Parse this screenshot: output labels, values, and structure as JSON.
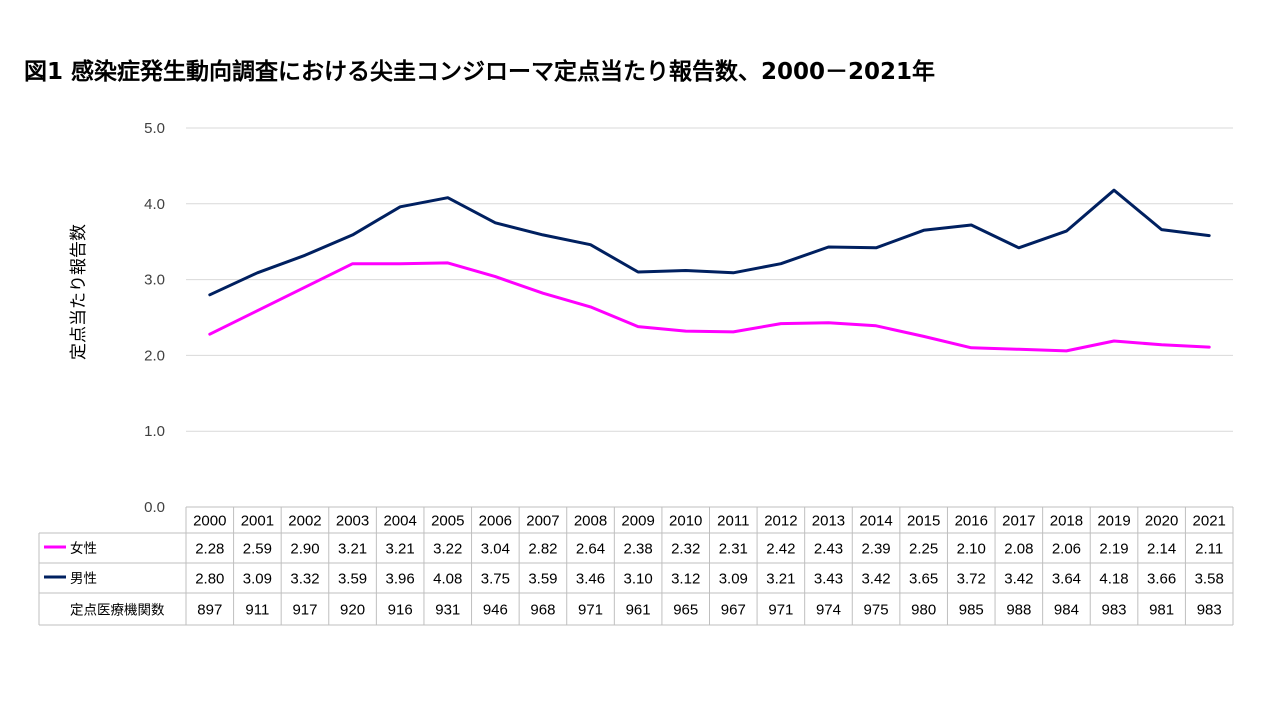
{
  "title": "図1 感染症発生動向調査における尖圭コンジローマ定点当たり報告数、2000－2021年",
  "chart_data": {
    "type": "line",
    "title": "図1 感染症発生動向調査における尖圭コンジローマ定点当たり報告数、2000－2021年",
    "ylabel": "定点当たり報告数",
    "xlabel": "",
    "ylim": [
      0,
      5
    ],
    "yticks": [
      "0.0",
      "1.0",
      "2.0",
      "3.0",
      "4.0",
      "5.0"
    ],
    "grid": true,
    "categories": [
      "2000",
      "2001",
      "2002",
      "2003",
      "2004",
      "2005",
      "2006",
      "2007",
      "2008",
      "2009",
      "2010",
      "2011",
      "2012",
      "2013",
      "2014",
      "2015",
      "2016",
      "2017",
      "2018",
      "2019",
      "2020",
      "2021"
    ],
    "series": [
      {
        "name": "女性",
        "color": "#ff00ff",
        "values": [
          2.28,
          2.59,
          2.9,
          3.21,
          3.21,
          3.22,
          3.04,
          2.82,
          2.64,
          2.38,
          2.32,
          2.31,
          2.42,
          2.43,
          2.39,
          2.25,
          2.1,
          2.08,
          2.06,
          2.19,
          2.14,
          2.11
        ]
      },
      {
        "name": "男性",
        "color": "#002060",
        "values": [
          2.8,
          3.09,
          3.32,
          3.59,
          3.96,
          4.08,
          3.75,
          3.59,
          3.46,
          3.1,
          3.12,
          3.09,
          3.21,
          3.43,
          3.42,
          3.65,
          3.72,
          3.42,
          3.64,
          4.18,
          3.66,
          3.58
        ]
      }
    ],
    "table": {
      "extra_row_label": "定点医療機関数",
      "extra_row_values": [
        897,
        911,
        917,
        920,
        916,
        931,
        946,
        968,
        971,
        961,
        965,
        967,
        971,
        974,
        975,
        980,
        985,
        988,
        984,
        983,
        981,
        983
      ]
    }
  }
}
